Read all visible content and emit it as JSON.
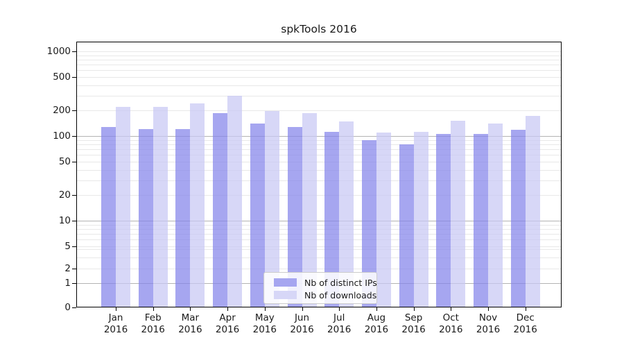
{
  "title": "spkTools 2016",
  "chart_data": {
    "type": "bar",
    "title": "spkTools 2016",
    "categories": [
      "Jan 2016",
      "Feb 2016",
      "Mar 2016",
      "Apr 2016",
      "May 2016",
      "Jun 2016",
      "Jul 2016",
      "Aug 2016",
      "Sep 2016",
      "Oct 2016",
      "Nov 2016",
      "Dec 2016"
    ],
    "series": [
      {
        "name": "Nb of distinct IPs",
        "color": "#a6a6f0",
        "values": [
          127,
          120,
          120,
          185,
          140,
          128,
          113,
          90,
          79,
          105,
          105,
          118
        ]
      },
      {
        "name": "Nb of downloads",
        "color": "#d7d7f7",
        "values": [
          220,
          220,
          245,
          300,
          196,
          188,
          150,
          110,
          113,
          152,
          140,
          172
        ]
      }
    ],
    "xlabel": "",
    "ylabel": "",
    "yscale": "symlog",
    "yticks": [
      0,
      1,
      2,
      5,
      10,
      20,
      50,
      100,
      200,
      500,
      1000
    ],
    "ylim": [
      0,
      1150
    ],
    "grid": true,
    "legend_position": "lower center"
  },
  "colors": {
    "grid_major": "#b3b3b3",
    "grid_minor": "#e8e8e8",
    "spine": "#000000",
    "text": "#1a1a1a",
    "legend_border": "#cccccc"
  }
}
